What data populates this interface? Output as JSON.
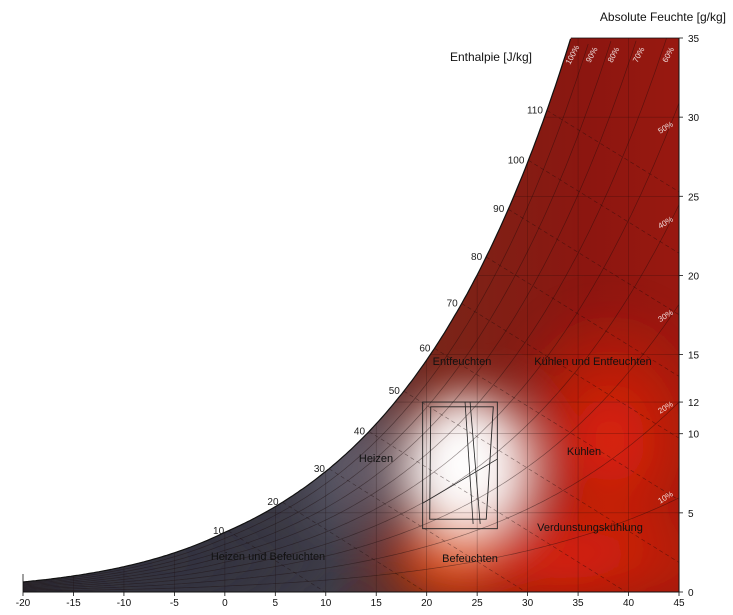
{
  "chart_data": {
    "type": "psychrometric",
    "title": "",
    "xlabel": "",
    "y_right_label": "Absolute Feuchte [g/kg]",
    "enthalpy_label": "Enthalpie [J/kg]",
    "x_ticks": [
      -20,
      -15,
      -10,
      -5,
      0,
      5,
      10,
      15,
      20,
      25,
      30,
      35,
      40,
      45
    ],
    "xlim": [
      -20,
      45
    ],
    "y_ticks": [
      0,
      5,
      10,
      12,
      15,
      20,
      25,
      30,
      35
    ],
    "ylim": [
      0,
      35
    ],
    "enthalpy_ticks": [
      10,
      20,
      30,
      40,
      50,
      60,
      70,
      80,
      90,
      100,
      110
    ],
    "rh_curves": [
      "10%",
      "20%",
      "30%",
      "40%",
      "50%",
      "60%",
      "70%",
      "80%",
      "90%",
      "100%"
    ],
    "comfort_zone": {
      "temperature_range": [
        20,
        27
      ],
      "humidity_range": [
        4,
        12
      ]
    },
    "regions": [
      {
        "label": "Entfeuchten",
        "color": "#6e0e0a"
      },
      {
        "label": "Kühlen und Entfeuchten",
        "color": "#8c1410"
      },
      {
        "label": "Heizen",
        "color": "#55505e"
      },
      {
        "label": "Kühlen",
        "color": "#c81e0a"
      },
      {
        "label": "Verdunstungskühlung",
        "color": "#e0280a"
      },
      {
        "label": "Befeuchten",
        "color": "#e84a10"
      },
      {
        "label": "Heizen und Befeuchten",
        "color": "#3a3a44"
      }
    ]
  }
}
